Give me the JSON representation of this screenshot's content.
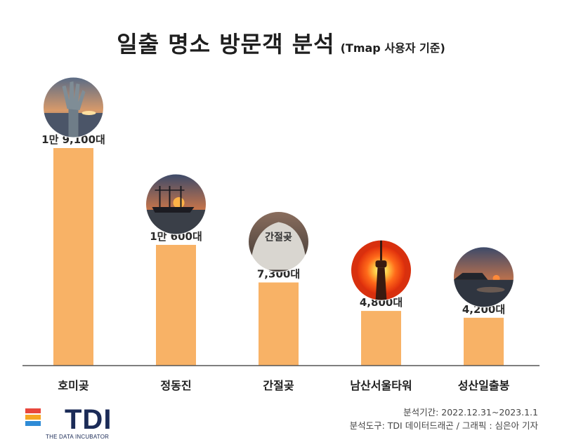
{
  "header": {
    "title": "일출 명소 방문객 분석",
    "subtitle": "(Tmap 사용자 기준)"
  },
  "chart_data": {
    "type": "bar",
    "title": "일출 명소 방문객 분석",
    "subtitle": "(Tmap 사용자 기준)",
    "categories": [
      "호미곶",
      "정동진",
      "간절곶",
      "남산서울타워",
      "성산일출봉"
    ],
    "values": [
      19100,
      10600,
      7300,
      4800,
      4200
    ],
    "value_labels": [
      "1만 9,100대",
      "1만 600대",
      "7,300대",
      "4,800대",
      "4,200대"
    ],
    "ylim": [
      0,
      19100
    ],
    "bar_color": "#F8B266",
    "grid": false,
    "legend": "none"
  },
  "images": [
    {
      "icon": "hand-sculpture-sunrise-photo"
    },
    {
      "icon": "ship-sunrise-photo"
    },
    {
      "icon": "ganjeolgot-stone-photo",
      "text": "간절곶"
    },
    {
      "icon": "tower-sunrise-photo"
    },
    {
      "icon": "seongsan-sunrise-photo"
    }
  ],
  "logo": {
    "name": "TDI",
    "tagline": "THE DATA INCUBATOR",
    "colors": [
      "#E8473C",
      "#F5A623",
      "#2E8BD6"
    ]
  },
  "credits": {
    "period": "분석기간: 2022.12.31~2023.1.1",
    "tools": "분석도구: TDI 데이터드래곤 / 그래픽 : 심은아 기자"
  }
}
